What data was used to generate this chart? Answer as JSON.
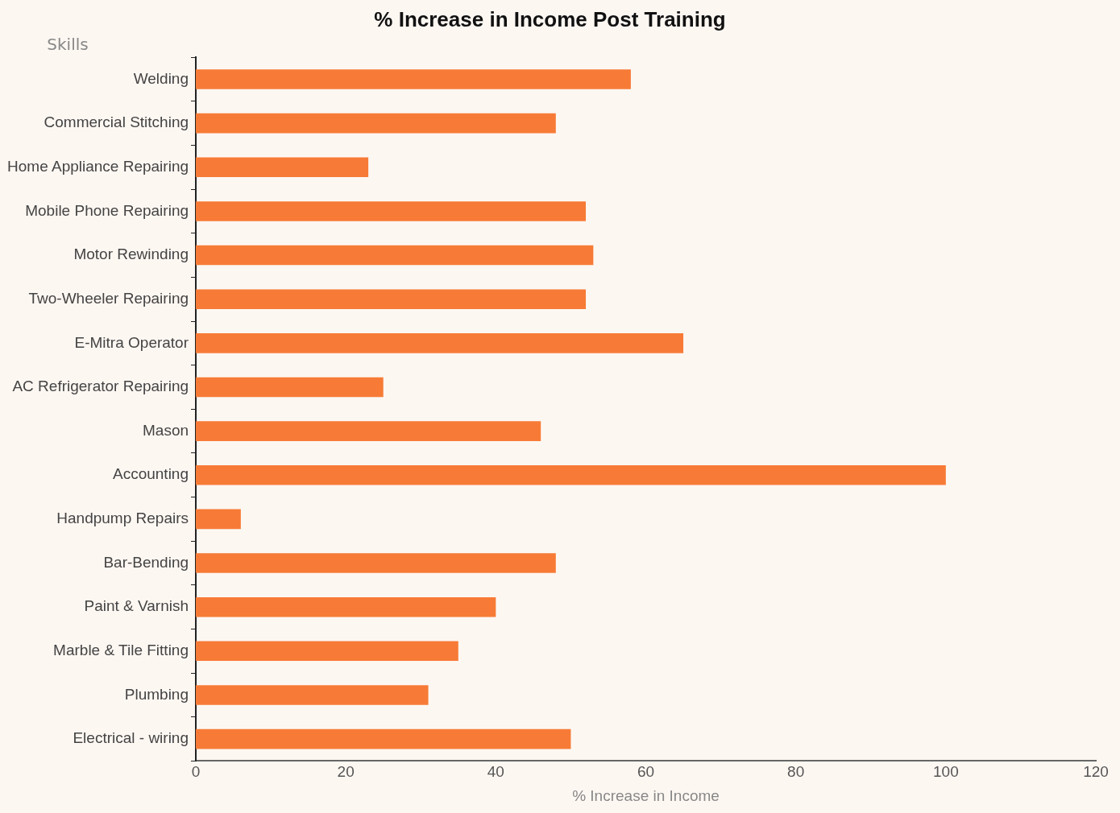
{
  "chart_data": {
    "type": "bar",
    "orientation": "horizontal",
    "title": "% Increase in Income Post Training",
    "xlabel": "% Increase in Income",
    "ylabel": "Skills",
    "categories": [
      "Welding",
      "Commercial Stitching",
      "Home Appliance Repairing",
      "Mobile Phone Repairing",
      "Motor Rewinding",
      "Two-Wheeler Repairing",
      "E-Mitra Operator",
      "AC Refrigerator Repairing",
      "Mason",
      "Accounting",
      "Handpump Repairs",
      "Bar-Bending",
      "Paint & Varnish",
      "Marble & Tile Fitting",
      "Plumbing",
      "Electrical - wiring"
    ],
    "values": [
      58,
      48,
      23,
      52,
      53,
      52,
      65,
      25,
      46,
      100,
      6,
      48,
      40,
      35,
      31,
      50
    ],
    "color": "#f77b36",
    "xlim": [
      0,
      120
    ],
    "xticks": [
      0,
      20,
      40,
      60,
      80,
      100,
      120
    ],
    "grid": false,
    "legend": false
  }
}
